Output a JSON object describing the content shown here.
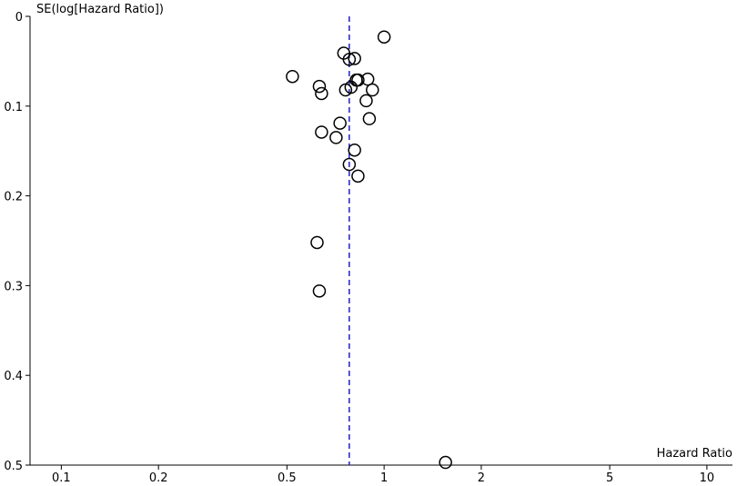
{
  "chart_data": {
    "type": "scatter",
    "title": "",
    "ylabel": "SE(log[Hazard Ratio])",
    "xlabel": "Hazard Ratio",
    "x_scale": "log",
    "xlim": [
      0.08,
      12
    ],
    "ylim": [
      0,
      0.5
    ],
    "y_reversed": true,
    "x_ticks": [
      {
        "value": 0.1,
        "label": "0.1"
      },
      {
        "value": 0.2,
        "label": "0.2"
      },
      {
        "value": 0.5,
        "label": "0.5"
      },
      {
        "value": 1,
        "label": "1"
      },
      {
        "value": 2,
        "label": "2"
      },
      {
        "value": 5,
        "label": "5"
      },
      {
        "value": 10,
        "label": "10"
      }
    ],
    "y_ticks": [
      {
        "value": 0,
        "label": "0"
      },
      {
        "value": 0.1,
        "label": "0.1"
      },
      {
        "value": 0.2,
        "label": "0.2"
      },
      {
        "value": 0.3,
        "label": "0.3"
      },
      {
        "value": 0.4,
        "label": "0.4"
      },
      {
        "value": 0.5,
        "label": "0.5"
      }
    ],
    "reference_line": {
      "x": 0.78,
      "style": "dashed",
      "color": "#2020c0"
    },
    "grid": false,
    "points": [
      {
        "x": 1.0,
        "y": 0.023
      },
      {
        "x": 0.75,
        "y": 0.041
      },
      {
        "x": 0.78,
        "y": 0.048
      },
      {
        "x": 0.81,
        "y": 0.047
      },
      {
        "x": 0.52,
        "y": 0.067
      },
      {
        "x": 0.82,
        "y": 0.071
      },
      {
        "x": 0.83,
        "y": 0.071
      },
      {
        "x": 0.89,
        "y": 0.07
      },
      {
        "x": 0.63,
        "y": 0.078
      },
      {
        "x": 0.79,
        "y": 0.079
      },
      {
        "x": 0.76,
        "y": 0.082
      },
      {
        "x": 0.92,
        "y": 0.082
      },
      {
        "x": 0.64,
        "y": 0.086
      },
      {
        "x": 0.88,
        "y": 0.094
      },
      {
        "x": 0.9,
        "y": 0.114
      },
      {
        "x": 0.73,
        "y": 0.119
      },
      {
        "x": 0.64,
        "y": 0.129
      },
      {
        "x": 0.71,
        "y": 0.135
      },
      {
        "x": 0.81,
        "y": 0.149
      },
      {
        "x": 0.78,
        "y": 0.165
      },
      {
        "x": 0.83,
        "y": 0.178
      },
      {
        "x": 0.62,
        "y": 0.252
      },
      {
        "x": 0.63,
        "y": 0.306
      },
      {
        "x": 1.55,
        "y": 0.497
      }
    ]
  }
}
